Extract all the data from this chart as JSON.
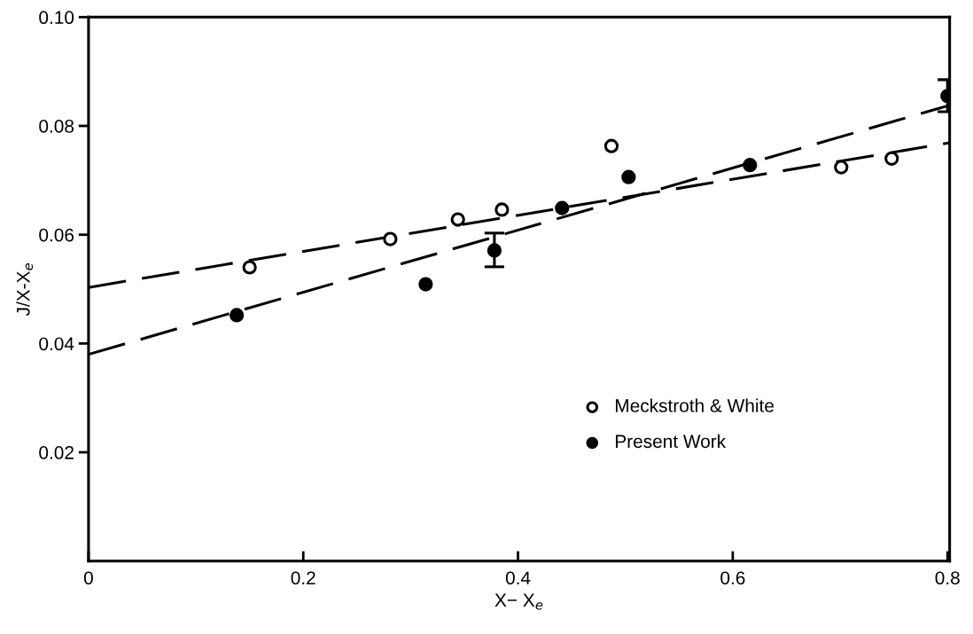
{
  "chart_data": {
    "type": "scatter",
    "xlabel": "X− X$_{e}$",
    "ylabel": "J/X-X$_{e}$",
    "xlim": [
      0,
      0.802
    ],
    "ylim": [
      0,
      0.1
    ],
    "xticks": [
      {
        "value": 0,
        "label": "0"
      },
      0.2,
      0.4,
      0.6,
      0.8
    ],
    "yticks": [
      0.02,
      0.04,
      0.06,
      0.08,
      {
        "value": 0.1,
        "label": "0.10"
      }
    ],
    "legend": "bottom",
    "grid": false,
    "series": [
      {
        "name": "Meckstroth & White",
        "marker": "circle",
        "color": "#ffffff",
        "x": [
          0.15,
          0.281,
          0.344,
          0.385,
          0.487,
          0.701,
          0.748
        ],
        "values": [
          0.054,
          0.0592,
          0.0628,
          0.0646,
          0.0763,
          0.0724,
          0.074
        ]
      },
      {
        "name": "Present Work",
        "marker": "circle",
        "color": "#000000",
        "x": [
          0.138,
          0.314,
          0.378,
          0.441,
          0.503,
          0.616,
          0.8
        ],
        "values": [
          0.0452,
          0.0509,
          0.0571,
          0.0649,
          0.0706,
          0.0728,
          0.0855
        ],
        "errors": [
          null,
          null,
          [
            0.0541,
            0.0603
          ],
          null,
          null,
          null,
          [
            0.0826,
            0.0885
          ]
        ]
      },
      {
        "type": "line",
        "line_style": "dashed",
        "marker": "none",
        "color": "#000000",
        "x": [
          0,
          0.802
        ],
        "values": [
          0.0503,
          0.0769
        ]
      },
      {
        "type": "line",
        "line_style": "dashed",
        "marker": "none",
        "color": "#000000",
        "x": [
          0,
          0.802
        ],
        "values": [
          0.038,
          0.0838
        ]
      }
    ]
  }
}
